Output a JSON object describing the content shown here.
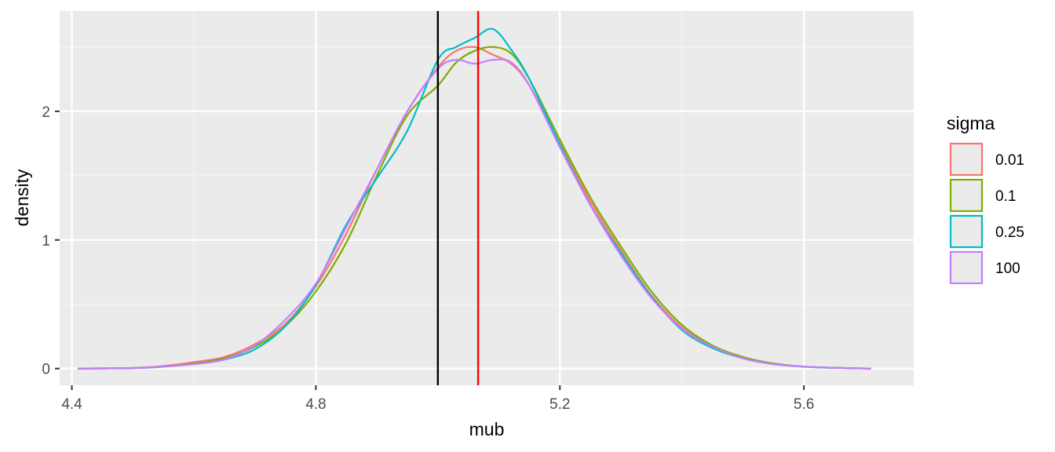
{
  "chart_data": {
    "type": "line",
    "title": "",
    "xlabel": "mub",
    "ylabel": "density",
    "xlim": [
      4.38,
      5.78
    ],
    "ylim": [
      -0.13,
      2.78
    ],
    "x_ticks": [
      4.4,
      4.8,
      5.2,
      5.6
    ],
    "x_tick_labels": [
      "4.4",
      "4.8",
      "5.2",
      "5.6"
    ],
    "y_ticks": [
      0,
      1,
      2
    ],
    "y_tick_labels": [
      "0",
      "1",
      "2"
    ],
    "grid": true,
    "legend": {
      "title": "sigma",
      "position": "right"
    },
    "vlines": [
      {
        "x": 5.0,
        "color": "#000000"
      },
      {
        "x": 5.066,
        "color": "#ff0000"
      }
    ],
    "series": [
      {
        "name": "0.01",
        "color": "#F8766D",
        "x": [
          4.41,
          4.5,
          4.55,
          4.6,
          4.65,
          4.7,
          4.75,
          4.8,
          4.85,
          4.9,
          4.95,
          5.0,
          5.03,
          5.06,
          5.09,
          5.12,
          5.15,
          5.2,
          5.25,
          5.3,
          5.35,
          5.4,
          5.45,
          5.5,
          5.55,
          5.6,
          5.65,
          5.71
        ],
        "y": [
          0.0,
          0.005,
          0.02,
          0.05,
          0.09,
          0.19,
          0.35,
          0.64,
          1.05,
          1.55,
          2.0,
          2.34,
          2.47,
          2.5,
          2.44,
          2.37,
          2.2,
          1.75,
          1.3,
          0.92,
          0.57,
          0.32,
          0.17,
          0.08,
          0.035,
          0.015,
          0.006,
          0.0
        ]
      },
      {
        "name": "0.1",
        "color": "#7CAE00",
        "x": [
          4.41,
          4.5,
          4.55,
          4.6,
          4.65,
          4.7,
          4.75,
          4.8,
          4.85,
          4.9,
          4.95,
          5.0,
          5.03,
          5.06,
          5.09,
          5.12,
          5.15,
          5.2,
          5.25,
          5.3,
          5.35,
          5.4,
          5.45,
          5.5,
          5.55,
          5.6,
          5.65,
          5.71
        ],
        "y": [
          0.0,
          0.004,
          0.015,
          0.04,
          0.08,
          0.17,
          0.33,
          0.6,
          0.98,
          1.5,
          1.97,
          2.2,
          2.38,
          2.47,
          2.5,
          2.45,
          2.25,
          1.78,
          1.33,
          0.95,
          0.6,
          0.34,
          0.18,
          0.09,
          0.04,
          0.015,
          0.006,
          0.0
        ]
      },
      {
        "name": "0.25",
        "color": "#00BFC4",
        "x": [
          4.41,
          4.5,
          4.55,
          4.6,
          4.65,
          4.7,
          4.75,
          4.8,
          4.85,
          4.9,
          4.95,
          5.0,
          5.03,
          5.06,
          5.09,
          5.12,
          5.15,
          5.2,
          5.25,
          5.3,
          5.35,
          5.4,
          5.45,
          5.5,
          5.55,
          5.6,
          5.65,
          5.71
        ],
        "y": [
          0.0,
          0.004,
          0.015,
          0.035,
          0.07,
          0.15,
          0.33,
          0.65,
          1.12,
          1.48,
          1.85,
          2.4,
          2.5,
          2.57,
          2.64,
          2.48,
          2.25,
          1.74,
          1.27,
          0.9,
          0.56,
          0.3,
          0.16,
          0.08,
          0.035,
          0.015,
          0.006,
          0.0
        ]
      },
      {
        "name": "100",
        "color": "#C77CFF",
        "x": [
          4.41,
          4.5,
          4.55,
          4.6,
          4.65,
          4.7,
          4.75,
          4.8,
          4.85,
          4.9,
          4.95,
          5.0,
          5.03,
          5.06,
          5.09,
          5.12,
          5.15,
          5.2,
          5.25,
          5.3,
          5.35,
          5.4,
          5.45,
          5.5,
          5.55,
          5.6,
          5.65,
          5.71
        ],
        "y": [
          0.0,
          0.004,
          0.015,
          0.035,
          0.07,
          0.18,
          0.38,
          0.66,
          1.1,
          1.55,
          2.0,
          2.33,
          2.4,
          2.37,
          2.4,
          2.38,
          2.2,
          1.72,
          1.27,
          0.88,
          0.55,
          0.31,
          0.17,
          0.08,
          0.035,
          0.015,
          0.006,
          0.0
        ]
      }
    ]
  }
}
